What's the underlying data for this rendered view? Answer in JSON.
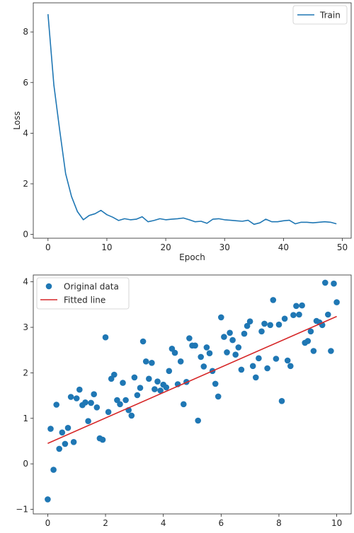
{
  "chart_data": [
    {
      "type": "line",
      "xlabel": "Epoch",
      "ylabel": "Loss",
      "xlim": [
        -2.5,
        51.5
      ],
      "ylim": [
        -0.15,
        9.15
      ],
      "xticks": [
        0,
        10,
        20,
        30,
        40,
        50
      ],
      "yticks": [
        0,
        2,
        4,
        6,
        8
      ],
      "grid": false,
      "legend_placement": "top-right",
      "series": [
        {
          "name": "Train",
          "color": "#1f77b4",
          "x": [
            0,
            1,
            2,
            3,
            4,
            5,
            6,
            7,
            8,
            9,
            10,
            11,
            12,
            13,
            14,
            15,
            16,
            17,
            18,
            19,
            20,
            21,
            22,
            23,
            24,
            25,
            26,
            27,
            28,
            29,
            30,
            31,
            32,
            33,
            34,
            35,
            36,
            37,
            38,
            39,
            40,
            41,
            42,
            43,
            44,
            45,
            46,
            47,
            48,
            49
          ],
          "y": [
            8.7,
            5.9,
            4.1,
            2.4,
            1.5,
            0.9,
            0.58,
            0.75,
            0.82,
            0.95,
            0.78,
            0.68,
            0.55,
            0.62,
            0.58,
            0.6,
            0.7,
            0.5,
            0.55,
            0.62,
            0.58,
            0.6,
            0.62,
            0.65,
            0.58,
            0.5,
            0.52,
            0.44,
            0.6,
            0.62,
            0.58,
            0.56,
            0.54,
            0.52,
            0.56,
            0.4,
            0.46,
            0.6,
            0.5,
            0.5,
            0.54,
            0.56,
            0.42,
            0.48,
            0.48,
            0.46,
            0.48,
            0.5,
            0.48,
            0.42
          ]
        }
      ]
    },
    {
      "type": "scatter",
      "xlim": [
        -0.5,
        10.5
      ],
      "ylim": [
        -1.1,
        4.15
      ],
      "xticks": [
        0,
        2,
        4,
        6,
        8,
        10
      ],
      "yticks": [
        -1,
        0,
        1,
        2,
        3,
        4
      ],
      "grid": false,
      "legend_placement": "top-left",
      "series": [
        {
          "name": "Original data",
          "kind": "points",
          "color": "#1f77b4",
          "x": [
            0,
            0.1,
            0.2,
            0.3,
            0.4,
            0.5,
            0.6,
            0.7,
            0.8,
            0.9,
            1.0,
            1.1,
            1.2,
            1.3,
            1.4,
            1.5,
            1.6,
            1.7,
            1.8,
            1.9,
            2.0,
            2.1,
            2.2,
            2.3,
            2.4,
            2.5,
            2.6,
            2.7,
            2.8,
            2.9,
            3.0,
            3.1,
            3.2,
            3.3,
            3.4,
            3.5,
            3.6,
            3.7,
            3.8,
            3.9,
            4.0,
            4.1,
            4.2,
            4.3,
            4.4,
            4.5,
            4.6,
            4.7,
            4.8,
            4.9,
            5.0,
            5.1,
            5.2,
            5.3,
            5.4,
            5.5,
            5.6,
            5.7,
            5.8,
            5.9,
            6.0,
            6.1,
            6.2,
            6.3,
            6.4,
            6.5,
            6.6,
            6.7,
            6.8,
            6.9,
            7.0,
            7.1,
            7.2,
            7.3,
            7.4,
            7.5,
            7.6,
            7.7,
            7.8,
            7.9,
            8.0,
            8.1,
            8.2,
            8.3,
            8.4,
            8.5,
            8.6,
            8.7,
            8.8,
            8.9,
            9.0,
            9.1,
            9.2,
            9.3,
            9.4,
            9.5,
            9.6,
            9.7,
            9.8,
            9.9,
            10.0
          ],
          "y": [
            -0.78,
            0.77,
            -0.13,
            1.3,
            0.33,
            0.69,
            0.44,
            0.79,
            1.47,
            0.48,
            1.44,
            1.63,
            1.29,
            1.35,
            0.94,
            1.34,
            1.53,
            1.24,
            0.56,
            0.53,
            2.78,
            1.14,
            1.87,
            1.96,
            1.4,
            1.31,
            1.78,
            1.4,
            1.18,
            1.06,
            1.9,
            1.51,
            1.67,
            2.69,
            2.25,
            1.87,
            2.22,
            1.64,
            1.81,
            1.61,
            1.74,
            1.68,
            2.04,
            2.53,
            2.44,
            1.75,
            2.25,
            1.31,
            1.8,
            2.76,
            2.6,
            2.6,
            0.95,
            2.35,
            2.14,
            2.56,
            2.43,
            2.04,
            1.76,
            1.48,
            3.22,
            2.79,
            2.45,
            2.88,
            2.72,
            2.4,
            2.56,
            2.07,
            2.86,
            3.03,
            3.13,
            2.15,
            1.9,
            2.32,
            2.91,
            3.08,
            2.1,
            3.05,
            3.6,
            2.31,
            3.06,
            1.38,
            3.19,
            2.27,
            2.15,
            3.27,
            3.47,
            3.28,
            3.48,
            2.66,
            2.7,
            2.91,
            2.48,
            3.14,
            3.11,
            3.05,
            3.98,
            3.28,
            2.48,
            3.96,
            3.55
          ]
        },
        {
          "name": "Fitted line",
          "kind": "line",
          "color": "#d62728",
          "x": [
            0,
            10
          ],
          "y": [
            0.45,
            3.24
          ]
        }
      ]
    }
  ]
}
